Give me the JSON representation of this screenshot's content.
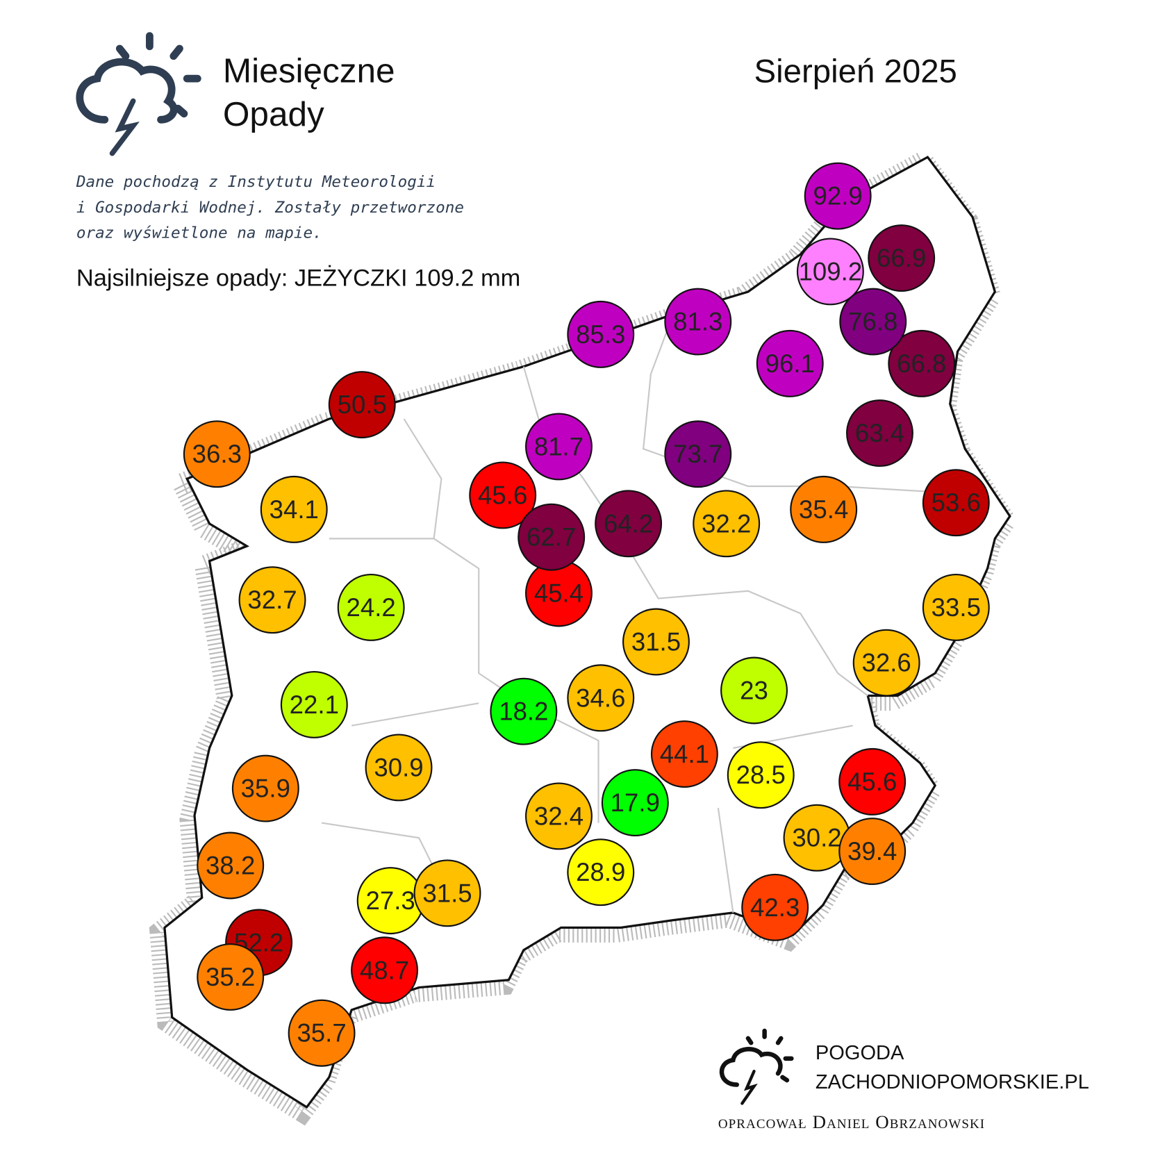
{
  "header": {
    "title_lines": [
      "Miesięczne",
      "Opady"
    ],
    "date": "Sierpień 2025",
    "source_lines": [
      "Dane pochodzą z Instytutu Meteorologii",
      "i Gospodarki Wodnej. Zostały przetworzone",
      "oraz wyświetlone na mapie."
    ],
    "strongest": "Najsilniejsze opady: JEŻYCZKI 109.2 mm"
  },
  "stations": [
    {
      "value": 92.9,
      "color": "#c000c0"
    },
    {
      "value": 109.2,
      "color": "#ff80ff"
    },
    {
      "value": 66.9,
      "color": "#800040"
    },
    {
      "value": 66.8,
      "color": "#800040"
    },
    {
      "value": 76.8,
      "color": "#800080"
    },
    {
      "value": 96.1,
      "color": "#c000c0"
    },
    {
      "value": 81.3,
      "color": "#c000c0"
    },
    {
      "value": 85.3,
      "color": "#c000c0"
    },
    {
      "value": 63.4,
      "color": "#800040"
    },
    {
      "value": 73.7,
      "color": "#800080"
    },
    {
      "value": 81.7,
      "color": "#c000c0"
    },
    {
      "value": 50.5,
      "color": "#c00000"
    },
    {
      "value": 36.3,
      "color": "#ff8000"
    },
    {
      "value": 34.1,
      "color": "#ffc000"
    },
    {
      "value": 45.6,
      "color": "#ff0000"
    },
    {
      "value": 45.4,
      "color": "#ff0000"
    },
    {
      "value": 62.7,
      "color": "#800040"
    },
    {
      "value": 64.2,
      "color": "#800040"
    },
    {
      "value": 32.2,
      "color": "#ffc000"
    },
    {
      "value": 35.4,
      "color": "#ff8000"
    },
    {
      "value": 53.6,
      "color": "#c00000"
    },
    {
      "value": 32.7,
      "color": "#ffc000"
    },
    {
      "value": 24.2,
      "color": "#c0ff00"
    },
    {
      "value": 31.5,
      "color": "#ffc000"
    },
    {
      "value": 33.5,
      "color": "#ffc000"
    },
    {
      "value": 32.6,
      "color": "#ffc000"
    },
    {
      "value": 23,
      "color": "#c0ff00"
    },
    {
      "value": 22.1,
      "color": "#c0ff00"
    },
    {
      "value": 18.2,
      "color": "#00ff00"
    },
    {
      "value": 34.6,
      "color": "#ffc000"
    },
    {
      "value": 44.1,
      "color": "#ff4000"
    },
    {
      "value": 28.5,
      "color": "#ffff00"
    },
    {
      "value": 45.6,
      "color": "#ff0000"
    },
    {
      "value": 30.9,
      "color": "#ffc000"
    },
    {
      "value": 35.9,
      "color": "#ff8000"
    },
    {
      "value": 17.9,
      "color": "#00ff00"
    },
    {
      "value": 32.4,
      "color": "#ffc000"
    },
    {
      "value": 30.2,
      "color": "#ffc000"
    },
    {
      "value": 39.4,
      "color": "#ff8000"
    },
    {
      "value": 38.2,
      "color": "#ff8000"
    },
    {
      "value": 28.9,
      "color": "#ffff00"
    },
    {
      "value": 27.3,
      "color": "#ffff00"
    },
    {
      "value": 31.5,
      "color": "#ffc000"
    },
    {
      "value": 42.3,
      "color": "#ff4000"
    },
    {
      "value": 52.2,
      "color": "#c00000"
    },
    {
      "value": 35.2,
      "color": "#ff8000"
    },
    {
      "value": 48.7,
      "color": "#ff0000"
    },
    {
      "value": 35.7,
      "color": "#ff8000"
    }
  ],
  "footer": {
    "brand_lines": [
      "POGODA",
      "ZACHODNIOPOMORSKIE.PL"
    ],
    "author": "opracował Daniel Obrzanowski"
  }
}
